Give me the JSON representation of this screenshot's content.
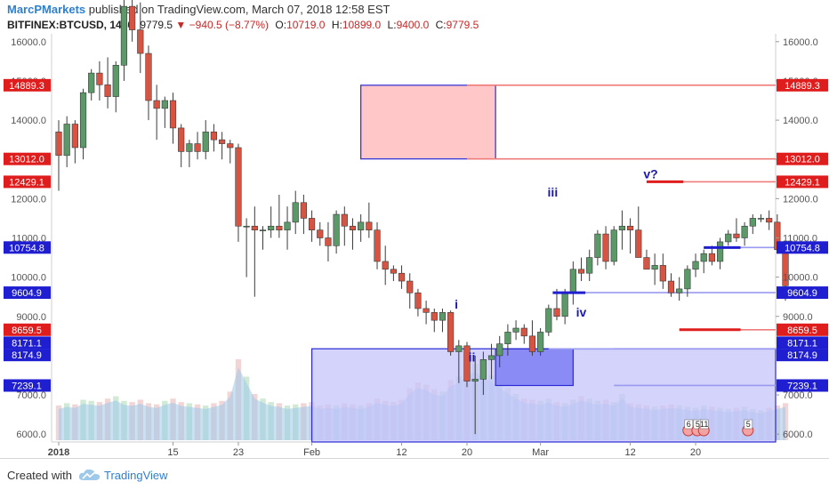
{
  "header": {
    "author": "MarcPMarkets",
    "published_text": " published on TradingView.com, March 07, 2018 12:58 EST",
    "symbol": "BITFINEX:BTCUSD, 1440",
    "last_price": "9779.5",
    "change": "−940.5 (−8.77%)",
    "o_label": "O:",
    "o_value": "10719.0",
    "h_label": "H:",
    "h_value": "10899.0",
    "l_label": "L:",
    "l_value": "9400.0",
    "c_label": "C:",
    "c_value": "9779.5"
  },
  "footer": {
    "created_with": "Created with",
    "brand": "TradingView"
  },
  "colors": {
    "up": "#5b9a68",
    "down": "#d75442",
    "red_level": "#f07b7b",
    "blue_level": "#9a9af0",
    "red_box": "#ffc7c7",
    "blue_box": "#c4c4fa",
    "dark_blue_box": "#8b8bf5",
    "label_red": "#e01d1d",
    "label_blue": "#1f1fd1",
    "wave": "#1a1aa8",
    "volume": "#9cc8ea"
  },
  "chart_data": {
    "type": "candlestick",
    "ylim": [
      5800,
      16200
    ],
    "y_ticks": [
      6000,
      7000,
      8000,
      9000,
      10000,
      11000,
      12000,
      13000,
      14000,
      15000,
      16000
    ],
    "y_tick_labels": [
      "6000.0",
      "7000.0",
      "8000.0",
      "9000.0",
      "10000.0",
      "11000.0",
      "12000.0",
      "13000.0",
      "14000.0",
      "15000.0",
      "16000.0"
    ],
    "x_labels": [
      {
        "label": "2018",
        "day": 0,
        "bold": true
      },
      {
        "label": "15",
        "day": 14
      },
      {
        "label": "23",
        "day": 22
      },
      {
        "label": "Feb",
        "day": 31
      },
      {
        "label": "12",
        "day": 42
      },
      {
        "label": "20",
        "day": 50
      },
      {
        "label": "Mar",
        "day": 59
      },
      {
        "label": "12",
        "day": 70
      },
      {
        "label": "20",
        "day": 78
      }
    ],
    "candles": [
      [
        13700,
        14000,
        12200,
        13100
      ],
      [
        13100,
        14100,
        12800,
        13900
      ],
      [
        13900,
        14000,
        12900,
        13300
      ],
      [
        13300,
        14800,
        13000,
        14700
      ],
      [
        14700,
        15300,
        14500,
        15200
      ],
      [
        15200,
        15500,
        14500,
        14900
      ],
      [
        14900,
        15600,
        14300,
        14600
      ],
      [
        14600,
        15500,
        14200,
        15400
      ],
      [
        15400,
        17100,
        15000,
        16900
      ],
      [
        16900,
        17200,
        16000,
        16300
      ],
      [
        16300,
        17000,
        15200,
        15700
      ],
      [
        15700,
        15900,
        14000,
        14500
      ],
      [
        14500,
        14900,
        13500,
        14300
      ],
      [
        14300,
        14600,
        13800,
        14500
      ],
      [
        14500,
        14700,
        13400,
        13800
      ],
      [
        13800,
        13900,
        12800,
        13200
      ],
      [
        13200,
        13500,
        12800,
        13400
      ],
      [
        13400,
        13700,
        13000,
        13200
      ],
      [
        13200,
        14000,
        13000,
        13700
      ],
      [
        13700,
        13900,
        13200,
        13500
      ],
      [
        13500,
        13700,
        13000,
        13400
      ],
      [
        13400,
        13500,
        12900,
        13300
      ],
      [
        13300,
        13400,
        10900,
        11300
      ],
      [
        11300,
        11500,
        10000,
        11300
      ],
      [
        11300,
        11800,
        9500,
        11200
      ],
      [
        11200,
        11300,
        10700,
        11200
      ],
      [
        11200,
        11800,
        11000,
        11300
      ],
      [
        11300,
        12100,
        11000,
        11200
      ],
      [
        11200,
        11800,
        10700,
        11400
      ],
      [
        11400,
        12200,
        11100,
        11900
      ],
      [
        11900,
        12100,
        11100,
        11500
      ],
      [
        11500,
        11700,
        10900,
        11200
      ],
      [
        11200,
        11400,
        10800,
        11000
      ],
      [
        11000,
        11400,
        10400,
        10800
      ],
      [
        10800,
        11700,
        10600,
        11600
      ],
      [
        11600,
        11800,
        10800,
        11300
      ],
      [
        11300,
        11500,
        10700,
        11200
      ],
      [
        11200,
        11600,
        10900,
        11400
      ],
      [
        11400,
        11900,
        11000,
        11200
      ],
      [
        11200,
        11400,
        10200,
        10400
      ],
      [
        10400,
        10800,
        9800,
        10200
      ]
    ],
    "candles_tail": [
      [
        10200,
        10300,
        9900,
        10100
      ],
      [
        10100,
        10300,
        9700,
        9900
      ],
      [
        9900,
        10100,
        9200,
        9600
      ],
      [
        9600,
        9700,
        9000,
        9200
      ],
      [
        9200,
        9400,
        8800,
        9100
      ],
      [
        9100,
        9200,
        8600,
        8900
      ],
      [
        8900,
        9200,
        8600,
        9100
      ],
      [
        9100,
        9150,
        8000,
        8100
      ],
      [
        8100,
        8400,
        7300,
        8250
      ],
      [
        8250,
        8350,
        7200,
        7350
      ],
      [
        7350,
        8000,
        6000,
        7400
      ],
      [
        7400,
        8100,
        7000,
        7900
      ],
      [
        7900,
        8300,
        7400,
        8000
      ],
      [
        8000,
        8500,
        7700,
        8300
      ],
      [
        8300,
        8800,
        8000,
        8600
      ],
      [
        8600,
        8900,
        8400,
        8700
      ],
      [
        8700,
        8800,
        8300,
        8500
      ],
      [
        8500,
        8900,
        8000,
        8100
      ],
      [
        8100,
        8700,
        8000,
        8600
      ],
      [
        8600,
        9300,
        8500,
        9200
      ],
      [
        9200,
        9700,
        8900,
        9000
      ],
      [
        9000,
        9700,
        8800,
        9600
      ],
      [
        9600,
        10400,
        9300,
        10200
      ],
      [
        10200,
        10500,
        9900,
        10100
      ],
      [
        10100,
        10700,
        9900,
        10500
      ],
      [
        10500,
        11200,
        10300,
        11100
      ],
      [
        11100,
        11300,
        10200,
        10400
      ],
      [
        10400,
        11300,
        10300,
        11200
      ],
      [
        11200,
        11700,
        10700,
        11300
      ],
      [
        11300,
        11500,
        10600,
        11200
      ],
      [
        11200,
        11800,
        10800,
        10500
      ],
      [
        10500,
        10700,
        10200,
        10200
      ],
      [
        10200,
        10600,
        9800,
        10300
      ],
      [
        10300,
        10600,
        9700,
        9900
      ],
      [
        9900,
        10100,
        9500,
        9600
      ],
      [
        9600,
        10000,
        9400,
        9700
      ],
      [
        9700,
        10300,
        9500,
        10200
      ],
      [
        10200,
        10600,
        10000,
        10400
      ],
      [
        10400,
        10700,
        10100,
        10600
      ],
      [
        10600,
        10800,
        10300,
        10400
      ],
      [
        10400,
        11000,
        10200,
        10900
      ],
      [
        10900,
        11200,
        10800,
        11100
      ],
      [
        11100,
        11500,
        10900,
        11000
      ],
      [
        11000,
        11400,
        10800,
        11300
      ],
      [
        11300,
        11600,
        11100,
        11500
      ],
      [
        11500,
        11600,
        11400,
        11500
      ],
      [
        11500,
        11700,
        11200,
        11400
      ],
      [
        11400,
        11600,
        10600,
        10700
      ],
      [
        10700,
        10900,
        9400,
        9779.5
      ]
    ],
    "volume": [
      0.3,
      0.32,
      0.31,
      0.35,
      0.34,
      0.33,
      0.36,
      0.38,
      0.34,
      0.33,
      0.35,
      0.32,
      0.31,
      0.34,
      0.36,
      0.33,
      0.32,
      0.31,
      0.3,
      0.32,
      0.34,
      0.42,
      0.7,
      0.55,
      0.4,
      0.36,
      0.33,
      0.32,
      0.3,
      0.31,
      0.32,
      0.33,
      0.3,
      0.31,
      0.3,
      0.32,
      0.31,
      0.3,
      0.32,
      0.36,
      0.34,
      0.33,
      0.35,
      0.45,
      0.5,
      0.48,
      0.44,
      0.42,
      0.52,
      0.55,
      0.62,
      0.66,
      0.6,
      0.56,
      0.5,
      0.45,
      0.4,
      0.36,
      0.35,
      0.34,
      0.36,
      0.33,
      0.32,
      0.35,
      0.38,
      0.36,
      0.34,
      0.35,
      0.33,
      0.4,
      0.32,
      0.31,
      0.3,
      0.29,
      0.3,
      0.31,
      0.3,
      0.29,
      0.28,
      0.3,
      0.29,
      0.28,
      0.27,
      0.28,
      0.29,
      0.27,
      0.26,
      0.28,
      0.3,
      0.32
    ],
    "price_levels": [
      {
        "value": 14889.3,
        "label": "14889.3",
        "kind": "red",
        "from_day": 50
      },
      {
        "value": 13012.0,
        "label": "13012.0",
        "kind": "red",
        "from_day": 50
      },
      {
        "value": 12429.1,
        "label": "12429.1",
        "kind": "red",
        "from_day": 72
      },
      {
        "value": 10754.8,
        "label": "10754.8",
        "kind": "blue",
        "from_day": 79
      },
      {
        "value": 9604.9,
        "label": "9604.9",
        "kind": "blue",
        "from_day": 64
      },
      {
        "value": 8659.5,
        "label": "8659.5",
        "kind": "red",
        "from_day": 80
      },
      {
        "value": 8171.1,
        "label": "8171.1",
        "kind": "blue",
        "from_day": 60
      },
      {
        "value": 8174.9,
        "label": "8174.9",
        "kind": "blue",
        "from_day": 68
      },
      {
        "value": 7239.1,
        "label": "7239.1",
        "kind": "blue",
        "from_day": 68
      }
    ],
    "label_offsets": {
      "8171.1": -7,
      "8174.9": 7
    },
    "zones": [
      {
        "kind": "red",
        "x1": 37,
        "x2": 53.5,
        "y1": 13012,
        "y2": 14889.3
      },
      {
        "kind": "blue",
        "x1": 31,
        "x2": 98,
        "y1": 5800,
        "y2": 8174.9
      },
      {
        "kind": "blue_dark",
        "x1": 53.5,
        "x2": 63,
        "y1": 7239.1,
        "y2": 8171.1
      }
    ],
    "segments": [
      {
        "kind": "red",
        "x1": 72,
        "x2": 76.5,
        "y": 12429.1
      },
      {
        "kind": "red",
        "x1": 76,
        "x2": 83.5,
        "y": 8659.5
      },
      {
        "kind": "blue",
        "x1": 79,
        "x2": 83.5,
        "y": 10754.8
      },
      {
        "kind": "blue",
        "x1": 60.5,
        "x2": 64.5,
        "y": 9604.9
      }
    ],
    "wave_labels": [
      {
        "text": "i",
        "day": 48.7,
        "value": 9200
      },
      {
        "text": "ii",
        "day": 50.6,
        "value": 7850
      },
      {
        "text": "iii",
        "day": 60.5,
        "value": 12050
      },
      {
        "text": "iv",
        "day": 64,
        "value": 9000
      },
      {
        "text": "v?",
        "day": 72.5,
        "value": 12520
      }
    ],
    "events": [
      {
        "text": "6",
        "day": 77.1
      },
      {
        "text": "5",
        "day": 78.2
      },
      {
        "text": "11",
        "day": 79.0
      },
      {
        "text": "5",
        "day": 84.4
      }
    ]
  }
}
